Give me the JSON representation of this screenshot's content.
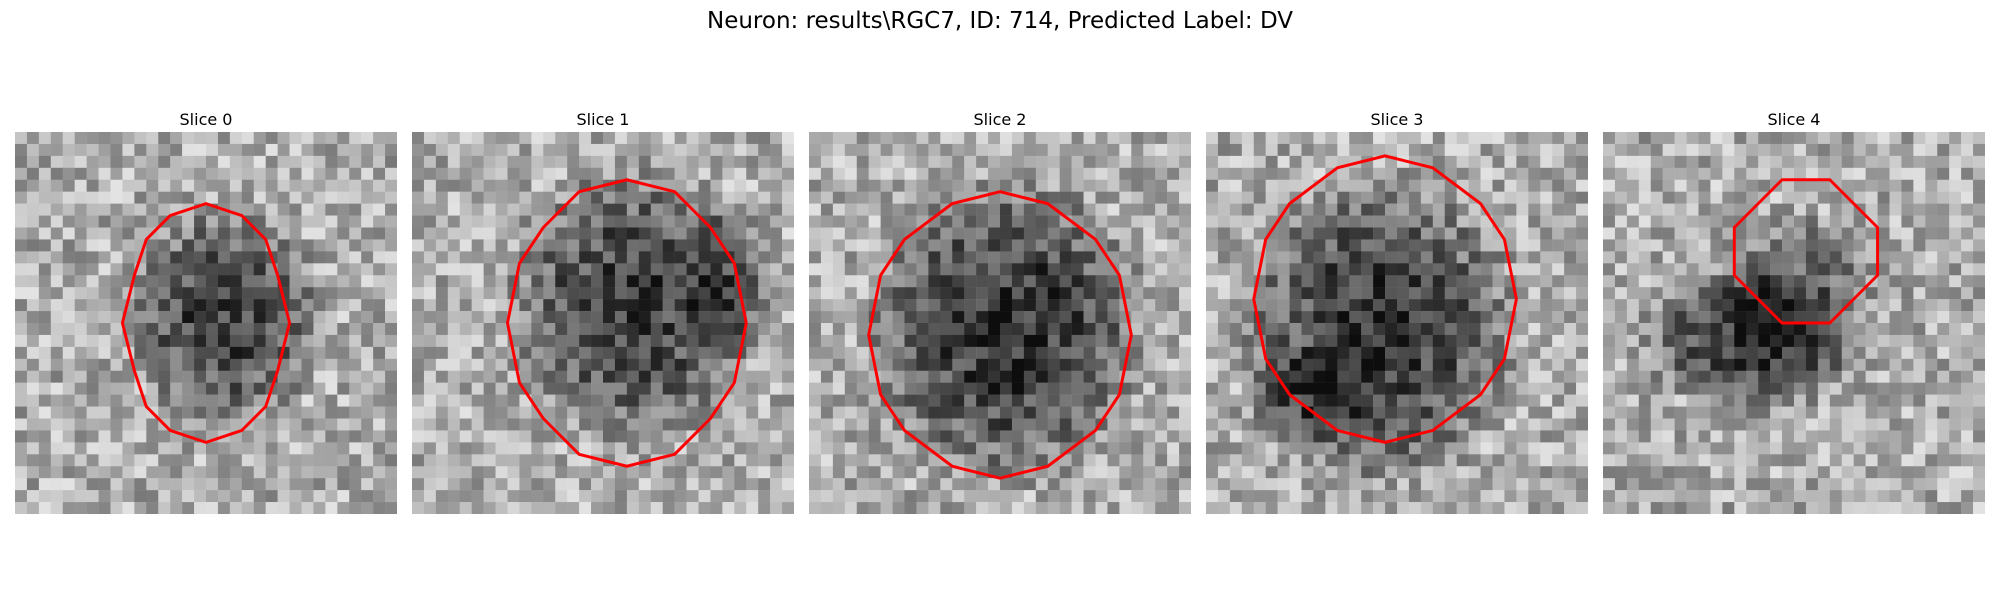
{
  "figure": {
    "title": "Neuron: results\\RGC7, ID: 714, Predicted Label: DV"
  },
  "panels": [
    {
      "title": "Slice 0"
    },
    {
      "title": "Slice 1"
    },
    {
      "title": "Slice 2"
    },
    {
      "title": "Slice 3"
    },
    {
      "title": "Slice 4"
    }
  ],
  "colors": {
    "contour": "#ff0000",
    "background": "#ffffff"
  }
}
